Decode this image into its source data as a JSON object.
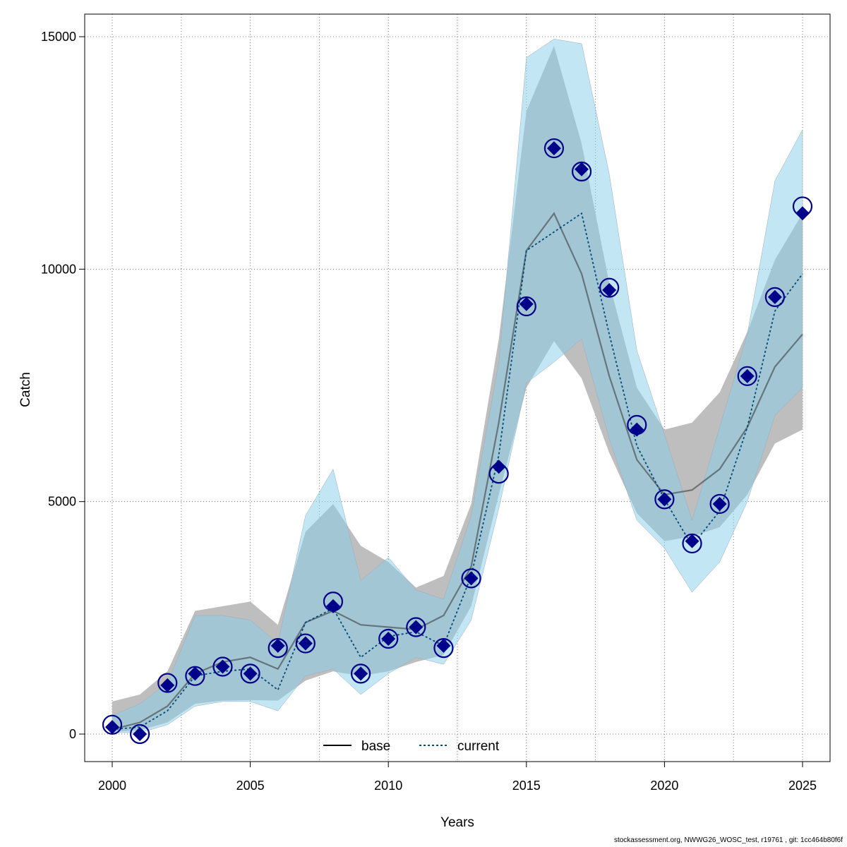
{
  "chart_data": {
    "type": "line",
    "title": "",
    "xlabel": "Years",
    "ylabel": "Catch",
    "xlim": [
      1999,
      2026
    ],
    "ylim": [
      -600,
      15500
    ],
    "x_ticks": [
      2000,
      2005,
      2010,
      2015,
      2020,
      2025
    ],
    "x_tick_labels": [
      "2000",
      "2005",
      "2010",
      "2015",
      "2020",
      "2025"
    ],
    "y_ticks": [
      0,
      5000,
      10000,
      15000
    ],
    "y_tick_labels": [
      "0",
      "5000",
      "10000",
      "15000"
    ],
    "x_grid": [
      2000,
      2002.5,
      2005,
      2007.5,
      2010,
      2012.5,
      2015,
      2017.5,
      2020,
      2022.5,
      2025
    ],
    "y_grid": [
      0,
      5000,
      10000,
      15000
    ],
    "grid": true,
    "legend_position": "bottom",
    "x": [
      2000,
      2001,
      2002,
      2003,
      2004,
      2005,
      2006,
      2007,
      2008,
      2009,
      2010,
      2011,
      2012,
      2013,
      2014,
      2015,
      2016,
      2017,
      2018,
      2019,
      2020,
      2021,
      2022,
      2023,
      2024,
      2025
    ],
    "series": [
      {
        "name": "base",
        "line_style": "solid",
        "color": "#333333",
        "band_color": "#bebebe",
        "values": [
          100,
          250,
          600,
          1300,
          1550,
          1650,
          1400,
          2400,
          2650,
          2350,
          2300,
          2250,
          2550,
          3600,
          6700,
          10400,
          11200,
          9900,
          7700,
          5900,
          5150,
          5250,
          5700,
          6600,
          7900,
          8600
        ],
        "lower": [
          50,
          80,
          250,
          650,
          720,
          730,
          720,
          1150,
          1350,
          1250,
          1350,
          1550,
          1700,
          2750,
          5150,
          7450,
          8450,
          7650,
          6050,
          4750,
          4150,
          4250,
          4450,
          5150,
          6250,
          6550
        ],
        "upper": [
          700,
          850,
          1350,
          2650,
          2750,
          2850,
          2350,
          4350,
          4950,
          4050,
          3700,
          3150,
          3400,
          4950,
          8500,
          13400,
          14800,
          12700,
          9700,
          7450,
          6550,
          6700,
          7350,
          8650,
          10200,
          11200
        ]
      },
      {
        "name": "current",
        "line_style": "dotted",
        "color": "#004b7a",
        "band_color": "#87ceeb",
        "values": [
          100,
          150,
          500,
          1250,
          1350,
          1400,
          950,
          2400,
          2700,
          1650,
          2100,
          2200,
          1900,
          3400,
          6000,
          10400,
          10800,
          11200,
          8600,
          6200,
          5050,
          4050,
          4800,
          6600,
          9100,
          9900
        ],
        "lower": [
          30,
          30,
          200,
          600,
          700,
          700,
          500,
          1250,
          1400,
          850,
          1300,
          1650,
          1500,
          2450,
          4850,
          7550,
          8000,
          8500,
          6350,
          4600,
          4000,
          3050,
          3700,
          5000,
          6850,
          7450
        ],
        "upper": [
          400,
          650,
          1100,
          2550,
          2550,
          2450,
          1950,
          4700,
          5700,
          3300,
          3800,
          3100,
          2900,
          4700,
          8000,
          14550,
          14950,
          14850,
          12050,
          8250,
          6450,
          4600,
          6600,
          8600,
          11900,
          13000
        ]
      }
    ],
    "observations": {
      "name": "observed catch",
      "marker": "circle",
      "color": "#00008b",
      "values": [
        200,
        0,
        1100,
        1250,
        1450,
        1300,
        1850,
        1950,
        2850,
        1300,
        2050,
        2300,
        1850,
        3350,
        5600,
        9200,
        12600,
        12100,
        9600,
        6650,
        5050,
        4100,
        4950,
        7700,
        9400,
        11350
      ]
    },
    "predictions": {
      "name": "predicted catch",
      "marker": "diamond",
      "color": "#00008b",
      "values": [
        150,
        0,
        1050,
        1300,
        1450,
        1300,
        1900,
        1950,
        2750,
        1300,
        2050,
        2300,
        1900,
        3350,
        5750,
        9250,
        12600,
        12150,
        9550,
        6550,
        5050,
        4150,
        4950,
        7700,
        9400,
        11200
      ]
    },
    "legend": [
      {
        "label": "base",
        "line_style": "solid",
        "color": "#000000"
      },
      {
        "label": "current",
        "line_style": "dotted",
        "color": "#004b7a"
      }
    ]
  },
  "footer": "stockassessment.org, NWWG26_WOSC_test, r19761 , git: 1cc464b80f6f"
}
